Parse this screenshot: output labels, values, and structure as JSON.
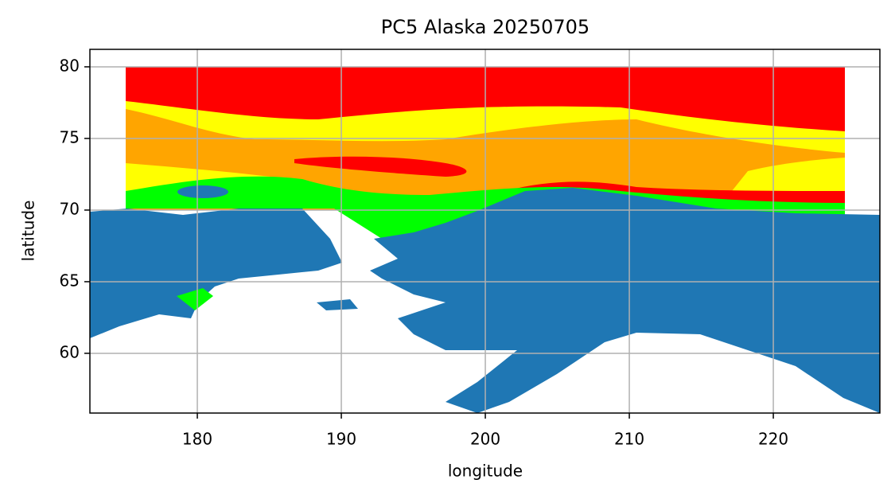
{
  "chart_data": {
    "type": "map",
    "title": "PC5 Alaska 20250705",
    "xlabel": "longitude",
    "ylabel": "latitude",
    "xlim": [
      172.54,
      227.4
    ],
    "ylim": [
      55.83,
      81.22
    ],
    "xticks": [
      180,
      190,
      200,
      210,
      220
    ],
    "yticks": [
      60,
      65,
      70,
      75,
      80
    ],
    "grid": true
  }
}
